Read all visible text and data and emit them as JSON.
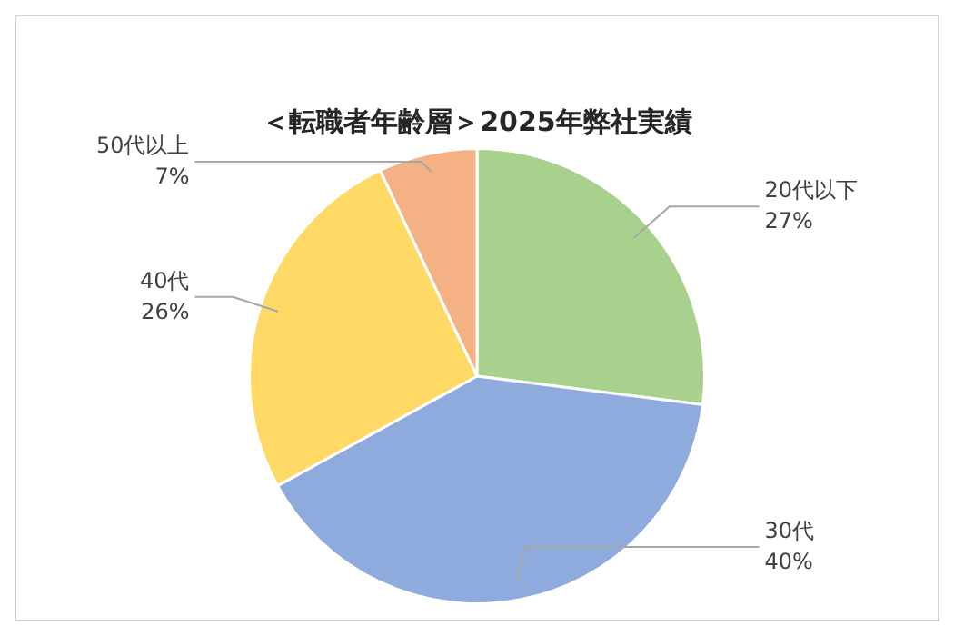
{
  "chart_data": {
    "type": "pie",
    "title": "＜転職者年齢層＞2025年弊社実績",
    "categories": [
      "20代以下",
      "30代",
      "40代",
      "50代以上"
    ],
    "values": [
      27,
      40,
      26,
      7
    ],
    "colors": [
      "#a9d18e",
      "#8faadc",
      "#ffd966",
      "#f4b183"
    ],
    "value_labels": [
      "27%",
      "40%",
      "26%",
      "7%"
    ],
    "legend": false
  }
}
